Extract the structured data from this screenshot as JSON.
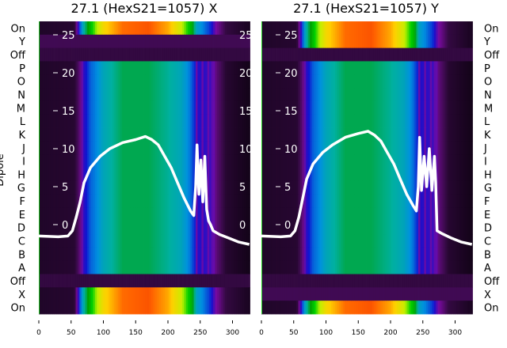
{
  "chart_data": {
    "type": "heatmap",
    "ylabel": "Dipole",
    "row_labels": [
      "On",
      "Y",
      "Off",
      "P",
      "O",
      "N",
      "M",
      "L",
      "K",
      "J",
      "I",
      "H",
      "G",
      "F",
      "E",
      "D",
      "C",
      "B",
      "A",
      "Off",
      "X",
      "On"
    ],
    "x_ticks": [
      0,
      50,
      100,
      150,
      200,
      250,
      300
    ],
    "x_range": [
      0,
      326
    ],
    "inner_y_ticks": [
      25,
      20,
      15,
      10,
      5,
      0
    ],
    "inner_y_range": [
      -11.5,
      27
    ],
    "colormap_stops": [
      "#000000",
      "#3a0a4a",
      "#7a0aa0",
      "#1010d0",
      "#0090e0",
      "#00b0a0",
      "#00a000",
      "#00d000",
      "#c0f000",
      "#ffd000",
      "#ff6000",
      "#e00000"
    ],
    "column_intensity": {
      "x": [
        0,
        55,
        60,
        65,
        70,
        80,
        90,
        100,
        130,
        170,
        200,
        220,
        235,
        245,
        265,
        275,
        290,
        326
      ],
      "main": [
        0.05,
        0.06,
        0.1,
        0.16,
        0.25,
        0.33,
        0.36,
        0.42,
        0.5,
        0.5,
        0.46,
        0.42,
        0.34,
        0.26,
        0.24,
        0.14,
        0.06,
        0.03
      ],
      "on": [
        0.05,
        0.06,
        0.2,
        0.35,
        0.45,
        0.6,
        0.72,
        0.8,
        0.9,
        0.92,
        0.85,
        0.75,
        0.6,
        0.4,
        0.3,
        0.18,
        0.08,
        0.04
      ],
      "off": [
        0.08,
        0.08,
        0.08,
        0.08,
        0.08,
        0.08,
        0.08,
        0.08,
        0.08,
        0.08,
        0.08,
        0.08,
        0.08,
        0.08,
        0.08,
        0.08,
        0.08,
        0.08
      ]
    },
    "panels": [
      {
        "title": "27.1 (HexS21=1057) X",
        "row_types": [
          "on",
          "off",
          "off",
          "main",
          "main",
          "main",
          "main",
          "main",
          "main",
          "main",
          "main",
          "main",
          "main",
          "main",
          "main",
          "main",
          "main",
          "main",
          "main",
          "off",
          "on",
          "on"
        ],
        "line": {
          "x": [
            0,
            30,
            45,
            52,
            58,
            64,
            70,
            80,
            95,
            110,
            130,
            150,
            165,
            175,
            185,
            195,
            205,
            215,
            225,
            235,
            240,
            243,
            245,
            248,
            251,
            254,
            257,
            260,
            263,
            266,
            270,
            280,
            295,
            310,
            326
          ],
          "y": [
            -1.5,
            -1.6,
            -1.5,
            -0.8,
            1,
            3,
            5.5,
            7.5,
            9,
            10,
            10.8,
            11.2,
            11.6,
            11.2,
            10.5,
            9,
            7.5,
            5.5,
            3.5,
            1.8,
            1.2,
            5,
            10.5,
            4,
            8.5,
            3,
            9,
            2,
            0.5,
            0,
            -0.8,
            -1.3,
            -1.8,
            -2.3,
            -2.6
          ]
        }
      },
      {
        "title": "27.1 (HexS21=1057) Y",
        "row_types": [
          "on",
          "on",
          "off",
          "main",
          "main",
          "main",
          "main",
          "main",
          "main",
          "main",
          "main",
          "main",
          "main",
          "main",
          "main",
          "main",
          "main",
          "main",
          "main",
          "off",
          "off",
          "on"
        ],
        "line": {
          "x": [
            0,
            30,
            45,
            52,
            58,
            64,
            70,
            80,
            95,
            110,
            130,
            150,
            165,
            175,
            185,
            195,
            205,
            215,
            225,
            235,
            240,
            243,
            245,
            248,
            252,
            256,
            260,
            264,
            268,
            270,
            272,
            280,
            295,
            310,
            326
          ],
          "y": [
            -1.5,
            -1.6,
            -1.5,
            -0.8,
            1,
            3.5,
            6,
            8,
            9.5,
            10.5,
            11.5,
            12,
            12.3,
            11.8,
            11,
            9.5,
            8,
            6,
            4,
            2.5,
            1.8,
            5,
            11.5,
            4.5,
            9,
            5,
            10,
            4.5,
            9,
            5.5,
            -0.8,
            -1.2,
            -1.8,
            -2.3,
            -2.6
          ]
        }
      }
    ]
  }
}
